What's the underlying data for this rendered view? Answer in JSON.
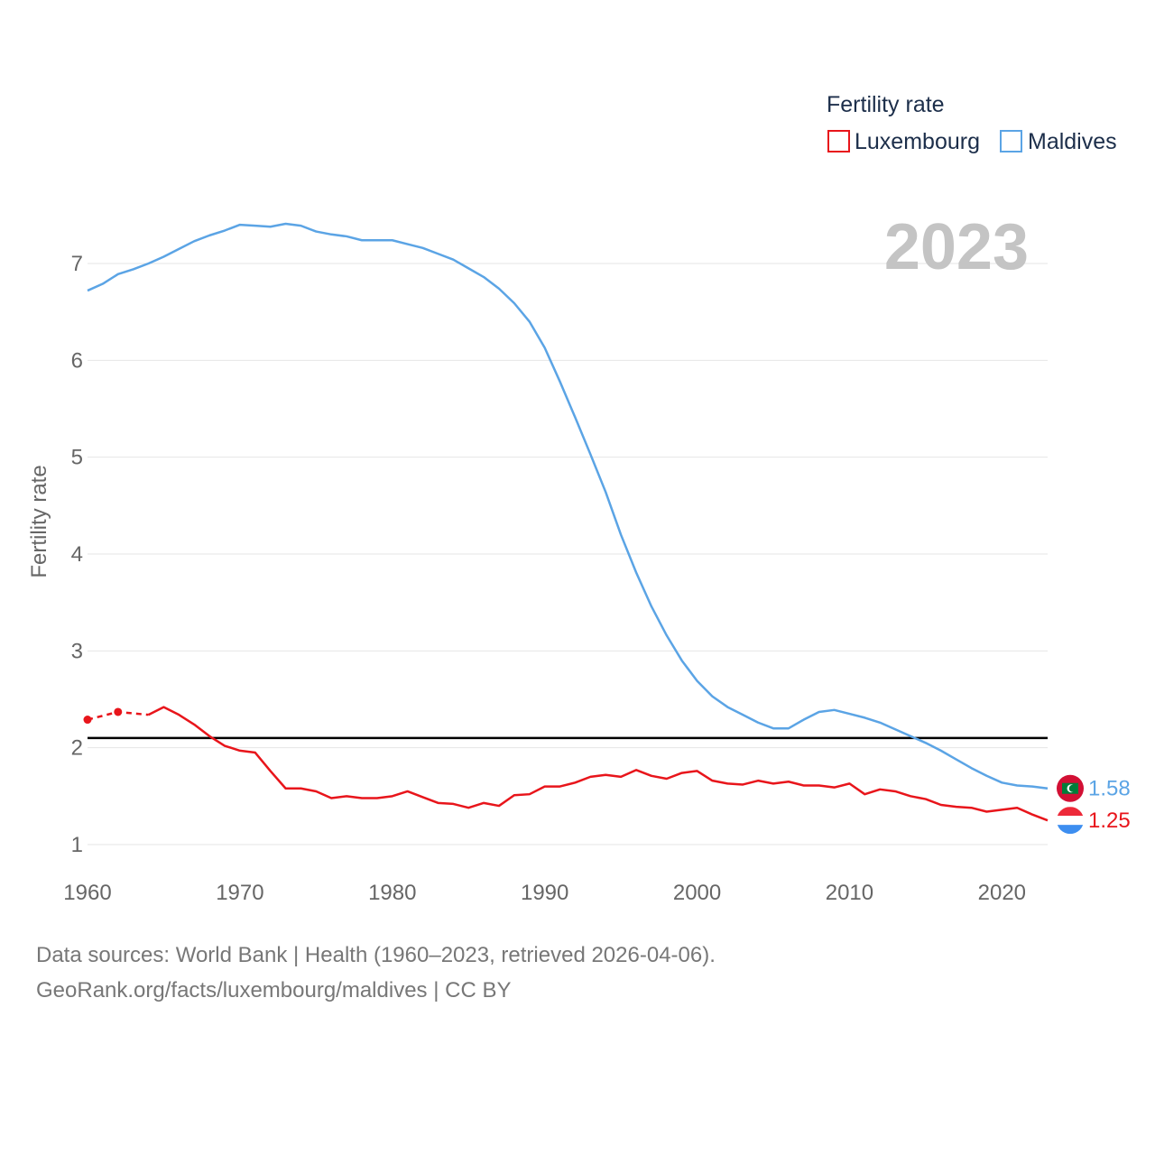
{
  "chart_data": {
    "type": "line",
    "year_label": "2023",
    "ylabel": "Fertility rate",
    "xlabel": "",
    "xlim": [
      1960,
      2023
    ],
    "ylim": [
      1,
      7.6
    ],
    "x_ticks": [
      "1960",
      "1970",
      "1980",
      "1990",
      "2000",
      "2010",
      "2020"
    ],
    "y_ticks": [
      "1",
      "2",
      "3",
      "4",
      "5",
      "6",
      "7"
    ],
    "reference_line": {
      "value": 2.1,
      "color": "#000000"
    },
    "legend": {
      "title": "Fertility rate",
      "position": "top-right"
    },
    "series": [
      {
        "name": "Luxembourg",
        "color": "#e8151b",
        "end_label": "1.25",
        "flag": "luxembourg-flag",
        "dashed_until": 1964,
        "markers_at": [
          1960,
          1962
        ],
        "x": [
          1960,
          1962,
          1964,
          1965,
          1966,
          1967,
          1968,
          1969,
          1970,
          1971,
          1972,
          1973,
          1974,
          1975,
          1976,
          1977,
          1978,
          1979,
          1980,
          1981,
          1982,
          1983,
          1984,
          1985,
          1986,
          1987,
          1988,
          1989,
          1990,
          1991,
          1992,
          1993,
          1994,
          1995,
          1996,
          1997,
          1998,
          1999,
          2000,
          2001,
          2002,
          2003,
          2004,
          2005,
          2006,
          2007,
          2008,
          2009,
          2010,
          2011,
          2012,
          2013,
          2014,
          2015,
          2016,
          2017,
          2018,
          2019,
          2020,
          2021,
          2022,
          2023
        ],
        "values": [
          2.29,
          2.37,
          2.34,
          2.42,
          2.34,
          2.24,
          2.12,
          2.02,
          1.97,
          1.95,
          1.76,
          1.58,
          1.58,
          1.55,
          1.48,
          1.5,
          1.48,
          1.48,
          1.5,
          1.55,
          1.49,
          1.43,
          1.42,
          1.38,
          1.43,
          1.4,
          1.51,
          1.52,
          1.6,
          1.6,
          1.64,
          1.7,
          1.72,
          1.7,
          1.77,
          1.71,
          1.68,
          1.74,
          1.76,
          1.66,
          1.63,
          1.62,
          1.66,
          1.63,
          1.65,
          1.61,
          1.61,
          1.59,
          1.63,
          1.52,
          1.57,
          1.55,
          1.5,
          1.47,
          1.41,
          1.39,
          1.38,
          1.34,
          1.36,
          1.38,
          1.31,
          1.25
        ]
      },
      {
        "name": "Maldives",
        "color": "#5ba4e5",
        "end_label": "1.58",
        "flag": "maldives-flag",
        "x": [
          1960,
          1961,
          1962,
          1963,
          1964,
          1965,
          1966,
          1967,
          1968,
          1969,
          1970,
          1971,
          1972,
          1973,
          1974,
          1975,
          1976,
          1977,
          1978,
          1979,
          1980,
          1981,
          1982,
          1983,
          1984,
          1985,
          1986,
          1987,
          1988,
          1989,
          1990,
          1991,
          1992,
          1993,
          1994,
          1995,
          1996,
          1997,
          1998,
          1999,
          2000,
          2001,
          2002,
          2003,
          2004,
          2005,
          2006,
          2007,
          2008,
          2009,
          2010,
          2011,
          2012,
          2013,
          2014,
          2015,
          2016,
          2017,
          2018,
          2019,
          2020,
          2021,
          2022,
          2023
        ],
        "values": [
          6.72,
          6.79,
          6.89,
          6.94,
          7.0,
          7.07,
          7.15,
          7.23,
          7.29,
          7.34,
          7.4,
          7.39,
          7.38,
          7.41,
          7.39,
          7.33,
          7.3,
          7.28,
          7.24,
          7.24,
          7.24,
          7.2,
          7.16,
          7.1,
          7.04,
          6.95,
          6.86,
          6.74,
          6.59,
          6.4,
          6.13,
          5.78,
          5.41,
          5.03,
          4.64,
          4.2,
          3.81,
          3.46,
          3.16,
          2.9,
          2.69,
          2.53,
          2.42,
          2.34,
          2.26,
          2.2,
          2.2,
          2.29,
          2.37,
          2.39,
          2.35,
          2.31,
          2.26,
          2.19,
          2.12,
          2.05,
          1.97,
          1.88,
          1.79,
          1.71,
          1.64,
          1.61,
          1.6,
          1.58
        ]
      }
    ]
  },
  "footer": {
    "line1": "Data sources: World Bank | Health (1960–2023, retrieved 2026-04-06).",
    "line2": "GeoRank.org/facts/luxembourg/maldives | CC BY"
  }
}
